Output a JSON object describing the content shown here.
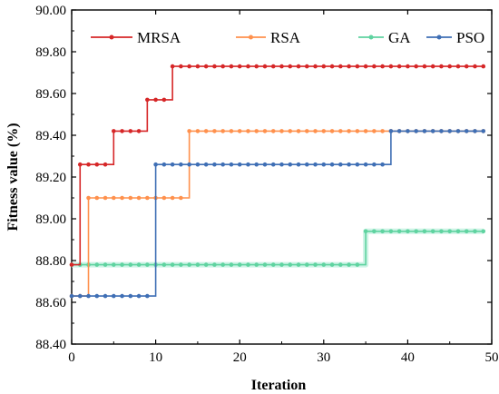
{
  "chart_data": {
    "type": "line",
    "title": "",
    "xlabel": "Iteration",
    "ylabel": "Fitness value (%)",
    "xlim": [
      0,
      50
    ],
    "ylim": [
      88.4,
      90.0
    ],
    "x_ticks": [
      "0",
      "10",
      "20",
      "30",
      "40",
      "50"
    ],
    "y_ticks": [
      "88.40",
      "88.60",
      "88.80",
      "89.00",
      "89.20",
      "89.40",
      "89.60",
      "89.80",
      "90.00"
    ],
    "grid": false,
    "legend_position": "top",
    "x": [
      0,
      1,
      2,
      3,
      4,
      5,
      6,
      7,
      8,
      9,
      10,
      11,
      12,
      13,
      14,
      15,
      16,
      17,
      18,
      19,
      20,
      21,
      22,
      23,
      24,
      25,
      26,
      27,
      28,
      29,
      30,
      31,
      32,
      33,
      34,
      35,
      36,
      37,
      38,
      39,
      40,
      41,
      42,
      43,
      44,
      45,
      46,
      47,
      48,
      49
    ],
    "series": [
      {
        "name": "MRSA",
        "color": "#d62728",
        "values": [
          88.78,
          89.26,
          89.26,
          89.26,
          89.26,
          89.42,
          89.42,
          89.42,
          89.42,
          89.57,
          89.57,
          89.57,
          89.73,
          89.73,
          89.73,
          89.73,
          89.73,
          89.73,
          89.73,
          89.73,
          89.73,
          89.73,
          89.73,
          89.73,
          89.73,
          89.73,
          89.73,
          89.73,
          89.73,
          89.73,
          89.73,
          89.73,
          89.73,
          89.73,
          89.73,
          89.73,
          89.73,
          89.73,
          89.73,
          89.73,
          89.73,
          89.73,
          89.73,
          89.73,
          89.73,
          89.73,
          89.73,
          89.73,
          89.73,
          89.73
        ]
      },
      {
        "name": "RSA",
        "color": "#ff914d",
        "values": [
          88.63,
          88.63,
          89.1,
          89.1,
          89.1,
          89.1,
          89.1,
          89.1,
          89.1,
          89.1,
          89.1,
          89.1,
          89.1,
          89.1,
          89.42,
          89.42,
          89.42,
          89.42,
          89.42,
          89.42,
          89.42,
          89.42,
          89.42,
          89.42,
          89.42,
          89.42,
          89.42,
          89.42,
          89.42,
          89.42,
          89.42,
          89.42,
          89.42,
          89.42,
          89.42,
          89.42,
          89.42,
          89.42,
          89.42,
          89.42,
          89.42,
          89.42,
          89.42,
          89.42,
          89.42,
          89.42,
          89.42,
          89.42,
          89.42,
          89.42
        ]
      },
      {
        "name": "GA",
        "color": "#5fd3a0",
        "values": [
          88.78,
          88.78,
          88.78,
          88.78,
          88.78,
          88.78,
          88.78,
          88.78,
          88.78,
          88.78,
          88.78,
          88.78,
          88.78,
          88.78,
          88.78,
          88.78,
          88.78,
          88.78,
          88.78,
          88.78,
          88.78,
          88.78,
          88.78,
          88.78,
          88.78,
          88.78,
          88.78,
          88.78,
          88.78,
          88.78,
          88.78,
          88.78,
          88.78,
          88.78,
          88.78,
          88.94,
          88.94,
          88.94,
          88.94,
          88.94,
          88.94,
          88.94,
          88.94,
          88.94,
          88.94,
          88.94,
          88.94,
          88.94,
          88.94,
          88.94
        ]
      },
      {
        "name": "PSO",
        "color": "#3f6fb5",
        "values": [
          88.63,
          88.63,
          88.63,
          88.63,
          88.63,
          88.63,
          88.63,
          88.63,
          88.63,
          88.63,
          89.26,
          89.26,
          89.26,
          89.26,
          89.26,
          89.26,
          89.26,
          89.26,
          89.26,
          89.26,
          89.26,
          89.26,
          89.26,
          89.26,
          89.26,
          89.26,
          89.26,
          89.26,
          89.26,
          89.26,
          89.26,
          89.26,
          89.26,
          89.26,
          89.26,
          89.26,
          89.26,
          89.26,
          89.42,
          89.42,
          89.42,
          89.42,
          89.42,
          89.42,
          89.42,
          89.42,
          89.42,
          89.42,
          89.42,
          89.42
        ]
      }
    ]
  }
}
